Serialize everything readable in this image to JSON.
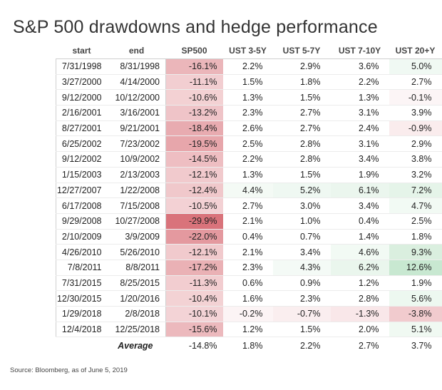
{
  "title": "S&P 500 drawdowns and hedge performance",
  "source": "Source: Bloomberg, as of June 5, 2019",
  "colors": {
    "negative_strong": "#d0505a",
    "positive_strong": "#63be7b",
    "neutral": "#ffffff"
  },
  "chart_data": {
    "type": "table",
    "columns": [
      "start",
      "end",
      "SP500",
      "UST 3-5Y",
      "UST 5-7Y",
      "UST 7-10Y",
      "UST 20+Y"
    ],
    "rows": [
      [
        "7/31/1998",
        "8/31/1998",
        "-16.1%",
        "2.2%",
        "2.9%",
        "3.6%",
        "5.0%"
      ],
      [
        "3/27/2000",
        "4/14/2000",
        "-11.1%",
        "1.5%",
        "1.8%",
        "2.2%",
        "2.7%"
      ],
      [
        "9/12/2000",
        "10/12/2000",
        "-10.6%",
        "1.3%",
        "1.5%",
        "1.3%",
        "-0.1%"
      ],
      [
        "2/16/2001",
        "3/16/2001",
        "-13.2%",
        "2.3%",
        "2.7%",
        "3.1%",
        "3.9%"
      ],
      [
        "8/27/2001",
        "9/21/2001",
        "-18.4%",
        "2.6%",
        "2.7%",
        "2.4%",
        "-0.9%"
      ],
      [
        "6/25/2002",
        "7/23/2002",
        "-19.5%",
        "2.5%",
        "2.8%",
        "3.1%",
        "2.9%"
      ],
      [
        "9/12/2002",
        "10/9/2002",
        "-14.5%",
        "2.2%",
        "2.8%",
        "3.4%",
        "3.8%"
      ],
      [
        "1/15/2003",
        "2/13/2003",
        "-12.1%",
        "1.3%",
        "1.5%",
        "1.9%",
        "3.2%"
      ],
      [
        "12/27/2007",
        "1/22/2008",
        "-12.4%",
        "4.4%",
        "5.2%",
        "6.1%",
        "7.2%"
      ],
      [
        "6/17/2008",
        "7/15/2008",
        "-10.5%",
        "2.7%",
        "3.0%",
        "3.4%",
        "4.7%"
      ],
      [
        "9/29/2008",
        "10/27/2008",
        "-29.9%",
        "2.1%",
        "1.0%",
        "0.4%",
        "2.5%"
      ],
      [
        "2/10/2009",
        "3/9/2009",
        "-22.0%",
        "0.4%",
        "0.7%",
        "1.4%",
        "1.8%"
      ],
      [
        "4/26/2010",
        "5/26/2010",
        "-12.1%",
        "2.1%",
        "3.4%",
        "4.6%",
        "9.3%"
      ],
      [
        "7/8/2011",
        "8/8/2011",
        "-17.2%",
        "2.3%",
        "4.3%",
        "6.2%",
        "12.6%"
      ],
      [
        "7/31/2015",
        "8/25/2015",
        "-11.3%",
        "0.6%",
        "0.9%",
        "1.2%",
        "1.9%"
      ],
      [
        "12/30/2015",
        "1/20/2016",
        "-10.4%",
        "1.6%",
        "2.3%",
        "2.8%",
        "5.6%"
      ],
      [
        "1/29/2018",
        "2/8/2018",
        "-10.1%",
        "-0.2%",
        "-0.7%",
        "-1.3%",
        "-3.8%"
      ],
      [
        "12/4/2018",
        "12/25/2018",
        "-15.6%",
        "1.2%",
        "1.5%",
        "2.0%",
        "5.1%"
      ]
    ],
    "average": {
      "label": "Average",
      "values": [
        "-14.8%",
        "1.8%",
        "2.2%",
        "2.7%",
        "3.7%"
      ]
    }
  }
}
